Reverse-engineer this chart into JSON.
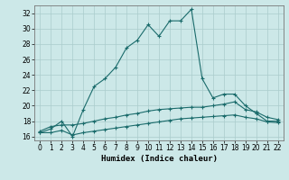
{
  "title": "",
  "xlabel": "Humidex (Indice chaleur)",
  "ylabel": "",
  "bg_color": "#cce8e8",
  "grid_color": "#aacccc",
  "line_color": "#1a6b6b",
  "xlim": [
    -0.5,
    22.5
  ],
  "ylim": [
    15.5,
    33.0
  ],
  "xticks": [
    0,
    1,
    2,
    3,
    4,
    5,
    6,
    7,
    8,
    9,
    10,
    11,
    12,
    13,
    14,
    15,
    16,
    17,
    18,
    19,
    20,
    21,
    22
  ],
  "yticks": [
    16,
    18,
    20,
    22,
    24,
    26,
    28,
    30,
    32
  ],
  "curve1_x": [
    0,
    1,
    2,
    3,
    4,
    5,
    6,
    7,
    8,
    9,
    10,
    11,
    12,
    13,
    14,
    15,
    16,
    17,
    18,
    19,
    20,
    21,
    22
  ],
  "curve1_y": [
    16.5,
    17.0,
    18.0,
    16.0,
    19.5,
    22.5,
    23.5,
    25.0,
    27.5,
    28.5,
    30.5,
    29.0,
    31.0,
    31.0,
    32.5,
    23.5,
    21.0,
    21.5,
    21.5,
    20.0,
    19.0,
    18.0,
    18.0
  ],
  "curve2_x": [
    0,
    1,
    2,
    3,
    4,
    5,
    6,
    7,
    8,
    9,
    10,
    11,
    12,
    13,
    14,
    15,
    16,
    17,
    18,
    19,
    20,
    21,
    22
  ],
  "curve2_y": [
    16.7,
    17.3,
    17.5,
    17.5,
    17.7,
    18.0,
    18.3,
    18.5,
    18.8,
    19.0,
    19.3,
    19.5,
    19.6,
    19.7,
    19.8,
    19.8,
    20.0,
    20.2,
    20.5,
    19.5,
    19.2,
    18.5,
    18.2
  ],
  "curve3_x": [
    0,
    1,
    2,
    3,
    4,
    5,
    6,
    7,
    8,
    9,
    10,
    11,
    12,
    13,
    14,
    15,
    16,
    17,
    18,
    19,
    20,
    21,
    22
  ],
  "curve3_y": [
    16.5,
    16.5,
    16.8,
    16.2,
    16.5,
    16.7,
    16.9,
    17.1,
    17.3,
    17.5,
    17.7,
    17.9,
    18.1,
    18.3,
    18.4,
    18.5,
    18.6,
    18.7,
    18.8,
    18.5,
    18.3,
    17.9,
    17.8
  ],
  "marker": "+",
  "markersize": 3.5,
  "linewidth": 0.8,
  "xlabel_fontsize": 6.5,
  "tick_fontsize": 5.5
}
